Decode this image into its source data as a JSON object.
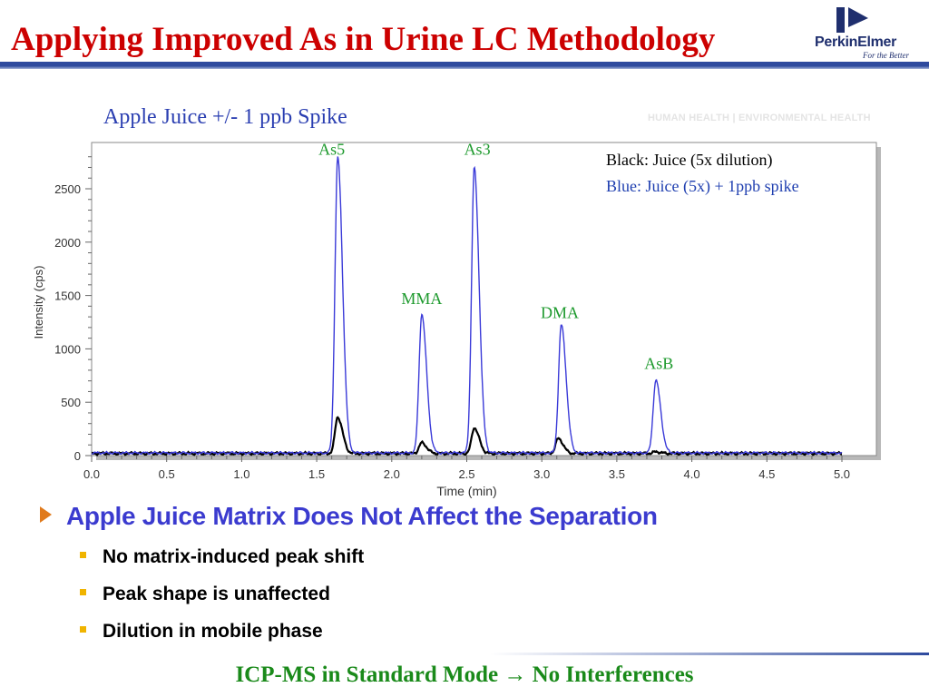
{
  "slide": {
    "title": "Applying Improved As in Urine LC Methodology",
    "brand": "PerkinElmer",
    "brand_tagline": "For the Better",
    "tagline": "HUMAN HEALTH | ENVIRONMENTAL HEALTH",
    "chart_title": "Apple Juice +/- 1 ppb Spike",
    "bullet_main": "Apple Juice Matrix Does Not Affect the Separation",
    "sub_bullets": [
      "No matrix-induced peak shift",
      "Peak shape is unaffected",
      "Dilution in mobile phase"
    ],
    "footer_before": "ICP-MS in Standard Mode",
    "footer_after": "No Interferences",
    "colors": {
      "title": "#cc0000",
      "accent_blue": "#2a3eb1",
      "peak_label": "#1e9a2e",
      "footer": "#1a8a1a",
      "bullet_arrow": "#e07a1c",
      "sub_bullet": "#f0b400"
    }
  },
  "chart_data": {
    "type": "line",
    "xlabel": "Time (min)",
    "ylabel": "Intensity (cps)",
    "xlim": [
      0.0,
      5.0
    ],
    "ylim": [
      0,
      2800
    ],
    "x_ticks": [
      "0.0",
      "0.5",
      "1.0",
      "1.5",
      "2.0",
      "2.5",
      "3.0",
      "3.5",
      "4.0",
      "4.5",
      "5.0"
    ],
    "y_ticks": [
      "0",
      "500",
      "1000",
      "1500",
      "2000",
      "2500"
    ],
    "legend": [
      "Black:  Juice (5x dilution)",
      "Blue:  Juice (5x) + 1ppb spike"
    ],
    "series": [
      {
        "name": "Juice (5x dilution)",
        "color": "#000000",
        "baseline": 20,
        "peaks": [
          {
            "label": "As5",
            "x": 1.64,
            "height": 340
          },
          {
            "label": "MMA",
            "x": 2.2,
            "height": 100
          },
          {
            "label": "As3",
            "x": 2.55,
            "height": 240
          },
          {
            "label": "DMA",
            "x": 3.11,
            "height": 140
          },
          {
            "label": "AsB",
            "x": 3.76,
            "height": 15
          }
        ]
      },
      {
        "name": "Juice (5x) + 1ppb spike",
        "color": "#3a3ad8",
        "baseline": 25,
        "peaks": [
          {
            "label": "As5",
            "x": 1.64,
            "height": 2770
          },
          {
            "label": "MMA",
            "x": 2.2,
            "height": 1300
          },
          {
            "label": "As3",
            "x": 2.55,
            "height": 2670
          },
          {
            "label": "DMA",
            "x": 3.13,
            "height": 1200
          },
          {
            "label": "AsB",
            "x": 3.76,
            "height": 680
          }
        ]
      }
    ],
    "peak_labels": [
      {
        "text": "As5",
        "x": 1.6,
        "y": 2820
      },
      {
        "text": "MMA",
        "x": 2.2,
        "y": 1420
      },
      {
        "text": "As3",
        "x": 2.57,
        "y": 2820
      },
      {
        "text": "DMA",
        "x": 3.12,
        "y": 1290
      },
      {
        "text": "AsB",
        "x": 3.78,
        "y": 810
      }
    ]
  }
}
